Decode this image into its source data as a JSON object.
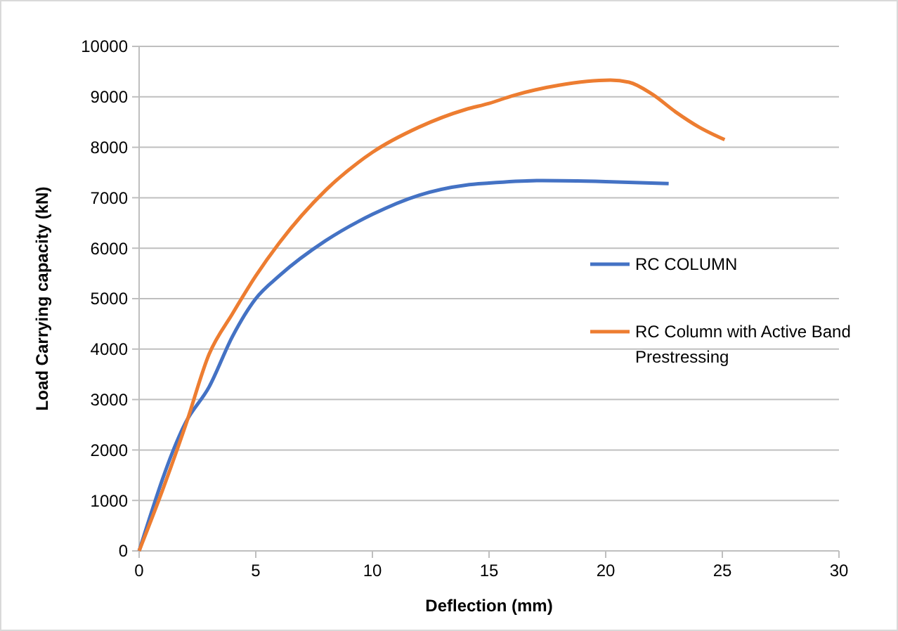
{
  "chart_data": {
    "type": "line",
    "xlabel": "Deflection (mm)",
    "ylabel": "Load Carrying capacity (kN)",
    "xlim": [
      0,
      30
    ],
    "xticks": [
      0,
      5,
      10,
      15,
      20,
      25,
      30
    ],
    "ylim": [
      0,
      10000
    ],
    "yticks": [
      0,
      1000,
      2000,
      3000,
      4000,
      5000,
      6000,
      7000,
      8000,
      9000,
      10000
    ],
    "grid": "y",
    "legend": "right",
    "marker": "none",
    "line_style": "solid",
    "series": [
      {
        "name": "RC COLUMN",
        "color": "#4472c4",
        "x": [
          0,
          2,
          3,
          4,
          5,
          6,
          8,
          10,
          12,
          14,
          15,
          17.3,
          20,
          22.7
        ],
        "values": [
          0,
          2550,
          3250,
          4250,
          5000,
          5450,
          6150,
          6670,
          7050,
          7250,
          7290,
          7340,
          7320,
          7280
        ]
      },
      {
        "name": "RC Column with Active Band Prestressing",
        "color": "#ed7d31",
        "x": [
          0,
          1,
          2,
          3,
          4,
          5,
          6,
          8,
          10,
          12,
          14,
          15,
          16,
          18,
          20.2,
          21,
          22,
          23,
          24,
          25.1
        ],
        "values": [
          0,
          1200,
          2500,
          3900,
          4700,
          5450,
          6100,
          7150,
          7900,
          8400,
          8750,
          8870,
          9020,
          9230,
          9330,
          9290,
          9050,
          8700,
          8400,
          8150
        ]
      }
    ]
  }
}
